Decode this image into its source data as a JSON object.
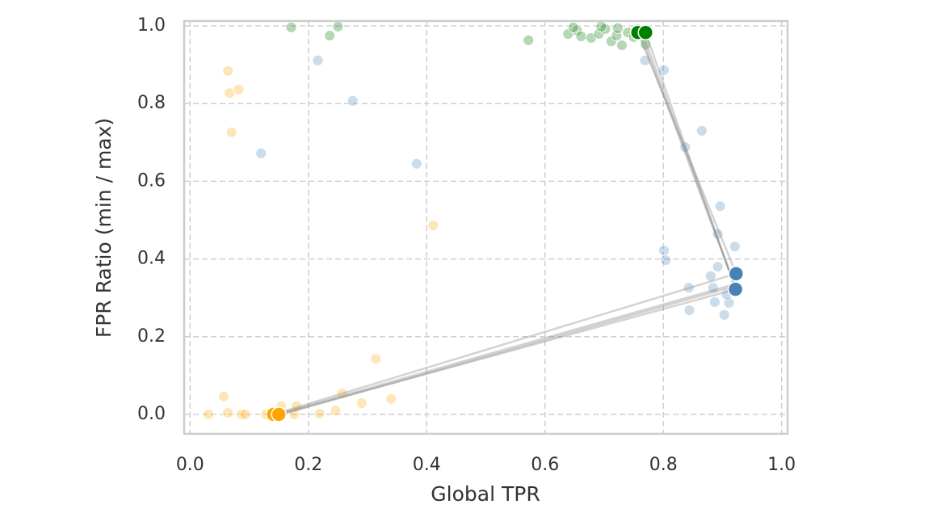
{
  "chart_data": {
    "type": "scatter",
    "x_label": "Global TPR",
    "y_label": "FPR Ratio (min / max)",
    "xlim": [
      -0.01,
      1.01
    ],
    "ylim": [
      -0.05,
      1.0125
    ],
    "xticks": [
      {
        "value": 0,
        "label": "0.0"
      },
      0.2,
      0.4,
      0.6,
      0.8,
      {
        "value": 1,
        "label": "1.0"
      }
    ],
    "yticks": [
      {
        "value": 0,
        "label": "0.0"
      },
      0.2,
      0.4,
      0.6,
      0.8,
      {
        "value": 1,
        "label": "1.0"
      }
    ],
    "grid": true,
    "series": [
      {
        "mode": "markers",
        "color": "#ffa500",
        "opacity": 0.28,
        "size": 6.5,
        "x": [
          0.031,
          0.057,
          0.064,
          0.067,
          0.082,
          0.07,
          0.064,
          0.087,
          0.093,
          0.154,
          0.176,
          0.18,
          0.219,
          0.246,
          0.257,
          0.29,
          0.314,
          0.34,
          0.411,
          0.128,
          0.142
        ],
        "values": [
          0,
          0.046,
          0.884,
          0.827,
          0.836,
          0.726,
          0.004,
          0,
          0,
          0.021,
          0,
          0.021,
          0.002,
          0.01,
          0.054,
          0.029,
          0.143,
          0.04,
          0.486,
          0,
          0
        ]
      },
      {
        "mode": "markers",
        "color": "#4682b4",
        "opacity": 0.28,
        "size": 6.5,
        "x": [
          0.216,
          0.275,
          0.12,
          0.383,
          0.769,
          0.801,
          0.865,
          0.837,
          0.896,
          0.892,
          0.921,
          0.801,
          0.804,
          0.892,
          0.843,
          0.884,
          0.844,
          0.903,
          0.887,
          0.911,
          0.907,
          0.925,
          0.88
        ],
        "values": [
          0.911,
          0.807,
          0.672,
          0.645,
          0.911,
          0.886,
          0.73,
          0.688,
          0.536,
          0.464,
          0.432,
          0.422,
          0.397,
          0.38,
          0.326,
          0.326,
          0.268,
          0.256,
          0.289,
          0.287,
          0.308,
          0.328,
          0.356
        ]
      },
      {
        "mode": "markers",
        "color": "#2e8b2e",
        "opacity": 0.35,
        "size": 6.5,
        "x": [
          0.171,
          0.236,
          0.25,
          0.572,
          0.639,
          0.654,
          0.661,
          0.678,
          0.691,
          0.702,
          0.712,
          0.73,
          0.721,
          0.74,
          0.757,
          0.77,
          0.695,
          0.723,
          0.75,
          0.648
        ],
        "values": [
          0.996,
          0.975,
          0.998,
          0.963,
          0.979,
          0.988,
          0.973,
          0.969,
          0.979,
          0.992,
          0.96,
          0.95,
          0.975,
          0.983,
          0.992,
          0.952,
          0.998,
          0.994,
          0.971,
          0.996
        ]
      },
      {
        "mode": "lines",
        "color": "#808080",
        "opacity": 0.35,
        "x": [
          0.141,
          0.923,
          0.757
        ],
        "values": [
          0,
          0.362,
          0.983
        ]
      },
      {
        "mode": "lines",
        "color": "#808080",
        "opacity": 0.35,
        "x": [
          0.15,
          0.922,
          0.77
        ],
        "values": [
          0,
          0.322,
          0.983
        ]
      },
      {
        "mode": "lines",
        "color": "#808080",
        "opacity": 0.35,
        "x": [
          0.146,
          0.92,
          0.765
        ],
        "values": [
          0,
          0.335,
          0.98
        ]
      },
      {
        "mode": "lines",
        "color": "#808080",
        "opacity": 0.35,
        "x": [
          0.155,
          0.921,
          0.76
        ],
        "values": [
          0,
          0.33,
          0.985
        ]
      },
      {
        "mode": "markers",
        "color": "#ffa500",
        "opacity": 1,
        "size": 9,
        "x": [
          0.141,
          0.15
        ],
        "values": [
          0,
          0
        ]
      },
      {
        "mode": "markers",
        "color": "#4682b4",
        "opacity": 1,
        "size": 9,
        "x": [
          0.923,
          0.922
        ],
        "values": [
          0.362,
          0.322
        ]
      },
      {
        "mode": "markers",
        "color": "#008000",
        "opacity": 1,
        "size": 9,
        "x": [
          0.757,
          0.77
        ],
        "values": [
          0.983,
          0.983
        ]
      }
    ]
  }
}
